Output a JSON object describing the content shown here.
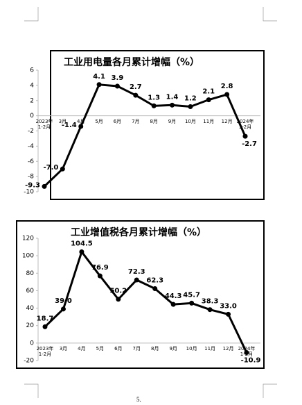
{
  "chart_data": [
    {
      "type": "line",
      "title": "工业用电量各月累计增幅（%）",
      "categories": [
        "2023年\n1-2月",
        "3月",
        "4月",
        "5月",
        "6月",
        "7月",
        "8月",
        "9月",
        "10月",
        "11月",
        "12月",
        "2024年\n1-2月"
      ],
      "values": [
        -9.3,
        -7,
        -1.4,
        4.1,
        3.9,
        2.7,
        1.3,
        1.4,
        1.2,
        2.1,
        2.8,
        -2.7
      ],
      "value_labels": [
        "-9.3",
        "-7.0",
        "-1.4",
        "4.1",
        "3.9",
        "2.7",
        "1.3",
        "1.4",
        "1.2",
        "2.1",
        "2.8",
        "-2.7"
      ],
      "color": "#000000",
      "ylim": [
        -10,
        6
      ],
      "yticks": [
        -10,
        -8,
        -6,
        -4,
        -2,
        0,
        2,
        4,
        6
      ]
    },
    {
      "type": "line",
      "title": "工业增值税各月累计增幅（%）",
      "categories": [
        "2023年\n1-2月",
        "3月",
        "4月",
        "5月",
        "6月",
        "7月",
        "8月",
        "9月",
        "10月",
        "11月",
        "12月",
        "2024年\n1-2月"
      ],
      "values": [
        18.7,
        39,
        104.5,
        76.9,
        50.2,
        72.3,
        62.3,
        44.3,
        45.7,
        38.3,
        33,
        -10.9
      ],
      "value_labels": [
        "18.7",
        "39.0",
        "104.5",
        "76.9",
        "50.2",
        "72.3",
        "62.3",
        "44.3",
        "45.7",
        "38.3",
        "33.0",
        "-10.9"
      ],
      "color": "#000000",
      "ylim": [
        -20,
        120
      ],
      "yticks": [
        -20,
        0,
        20,
        40,
        60,
        80,
        100,
        120
      ]
    }
  ],
  "page_number": "5."
}
